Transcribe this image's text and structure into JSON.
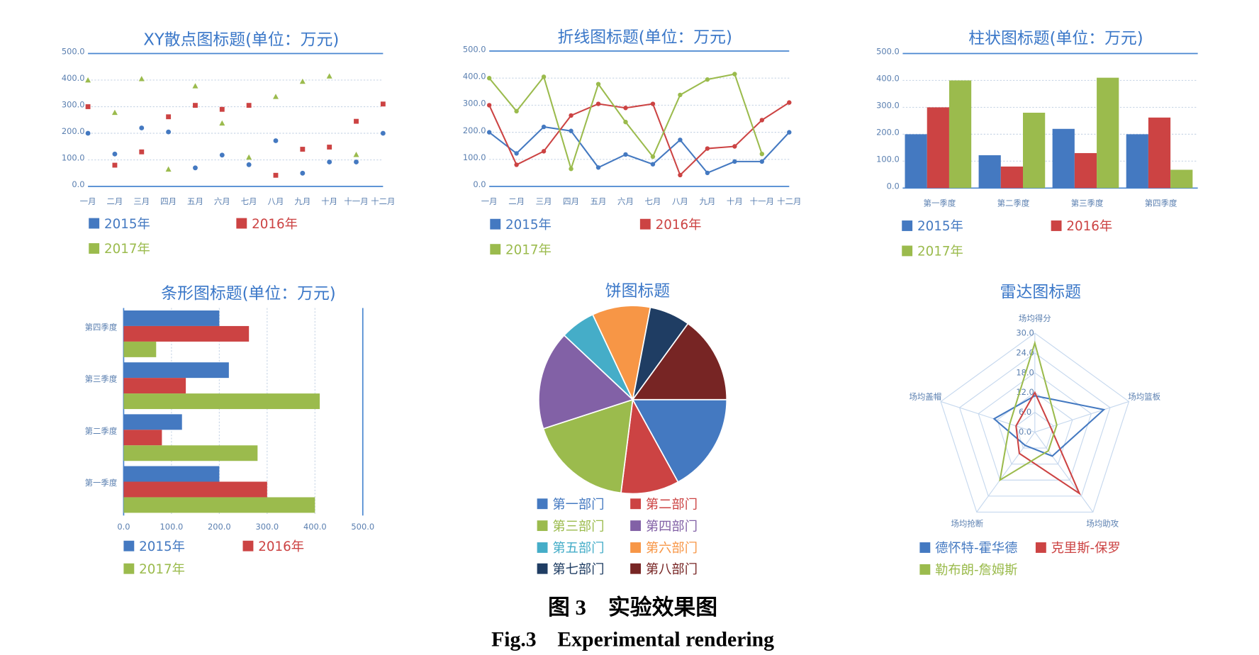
{
  "chart_data": [
    {
      "type": "scatter",
      "title": "XY散点图标题(单位：万元)",
      "categories": [
        "一月",
        "二月",
        "三月",
        "四月",
        "五月",
        "六月",
        "七月",
        "八月",
        "九月",
        "十月",
        "十一月",
        "十二月"
      ],
      "series": [
        {
          "name": "2015年",
          "color": "#4479c1",
          "marker": "circle",
          "values": [
            200,
            122,
            220,
            205,
            70,
            118,
            82,
            172,
            50,
            92,
            92,
            200
          ]
        },
        {
          "name": "2016年",
          "color": "#cc4343",
          "marker": "square",
          "values": [
            300,
            80,
            130,
            262,
            305,
            290,
            305,
            42,
            140,
            148,
            245,
            310
          ]
        },
        {
          "name": "2017年",
          "color": "#9bbb4d",
          "marker": "triangle",
          "values": [
            400,
            278,
            405,
            65,
            378,
            238,
            110,
            338,
            395,
            415,
            120,
            null
          ]
        }
      ],
      "ylim": [
        0,
        500
      ],
      "yticks": [
        {
          "value": 0,
          "label": "0.0"
        },
        {
          "value": 100,
          "label": "100.0"
        },
        {
          "value": 200,
          "label": "200.0"
        },
        {
          "value": 300,
          "label": "300.0"
        },
        {
          "value": 400,
          "label": "400.0"
        },
        {
          "value": 500,
          "label": "500.0"
        }
      ],
      "grid": true
    },
    {
      "type": "line",
      "title": "折线图标题(单位：万元)",
      "categories": [
        "一月",
        "二月",
        "三月",
        "四月",
        "五月",
        "六月",
        "七月",
        "八月",
        "九月",
        "十月",
        "十一月",
        "十二月"
      ],
      "series": [
        {
          "name": "2015年",
          "color": "#4479c1",
          "values": [
            200,
            122,
            220,
            205,
            70,
            118,
            82,
            172,
            50,
            92,
            92,
            200
          ]
        },
        {
          "name": "2016年",
          "color": "#cc4343",
          "values": [
            300,
            80,
            130,
            262,
            305,
            290,
            305,
            42,
            140,
            148,
            245,
            310
          ]
        },
        {
          "name": "2017年",
          "color": "#9bbb4d",
          "values": [
            400,
            278,
            405,
            65,
            378,
            238,
            110,
            338,
            395,
            415,
            120,
            null
          ]
        }
      ],
      "ylim": [
        0,
        500
      ],
      "yticks": [
        {
          "value": 0,
          "label": "0.0"
        },
        {
          "value": 100,
          "label": "100.0"
        },
        {
          "value": 200,
          "label": "200.0"
        },
        {
          "value": 300,
          "label": "300.0"
        },
        {
          "value": 400,
          "label": "400.0"
        },
        {
          "value": 500,
          "label": "500.0"
        }
      ],
      "grid": true
    },
    {
      "type": "bar",
      "title": "柱状图标题(单位：万元)",
      "categories": [
        "第一季度",
        "第二季度",
        "第三季度",
        "第四季度"
      ],
      "series": [
        {
          "name": "2015年",
          "color": "#4479c1",
          "values": [
            200,
            122,
            220,
            200
          ]
        },
        {
          "name": "2016年",
          "color": "#cc4343",
          "values": [
            300,
            80,
            130,
            262
          ]
        },
        {
          "name": "2017年",
          "color": "#9bbb4d",
          "values": [
            400,
            280,
            410,
            68
          ]
        }
      ],
      "ylim": [
        0,
        500
      ],
      "yticks": [
        {
          "value": 0,
          "label": "0.0"
        },
        {
          "value": 100,
          "label": "100.0"
        },
        {
          "value": 200,
          "label": "200.0"
        },
        {
          "value": 300,
          "label": "300.0"
        },
        {
          "value": 400,
          "label": "400.0"
        },
        {
          "value": 500,
          "label": "500.0"
        }
      ],
      "grid": true
    },
    {
      "type": "barh",
      "title": "条形图标题(单位：万元)",
      "categories": [
        "第一季度",
        "第二季度",
        "第三季度",
        "第四季度"
      ],
      "series": [
        {
          "name": "2015年",
          "color": "#4479c1",
          "values": [
            200,
            122,
            220,
            200
          ]
        },
        {
          "name": "2016年",
          "color": "#cc4343",
          "values": [
            300,
            80,
            130,
            262
          ]
        },
        {
          "name": "2017年",
          "color": "#9bbb4d",
          "values": [
            400,
            280,
            410,
            68
          ]
        }
      ],
      "xlim": [
        0,
        500
      ],
      "xticks": [
        {
          "value": 0,
          "label": "0.0"
        },
        {
          "value": 100,
          "label": "100.0"
        },
        {
          "value": 200,
          "label": "200.0"
        },
        {
          "value": 300,
          "label": "300.0"
        },
        {
          "value": 400,
          "label": "400.0"
        },
        {
          "value": 500,
          "label": "500.0"
        }
      ],
      "grid": true
    },
    {
      "type": "pie",
      "title": "饼图标题",
      "categories": [
        "第一部门",
        "第二部门",
        "第三部门",
        "第四部门",
        "第五部门",
        "第六部门",
        "第七部门",
        "第八部门"
      ],
      "values": [
        17,
        10,
        18,
        17,
        6,
        10,
        7,
        15
      ],
      "colors": [
        "#4479c1",
        "#cc4343",
        "#9bbb4d",
        "#8261a6",
        "#45adc8",
        "#f79646",
        "#1f3d63",
        "#772524"
      ]
    },
    {
      "type": "radar",
      "title": "雷达图标题",
      "categories": [
        "场均得分",
        "场均篮板",
        "场均助攻",
        "场均抢断",
        "场均盖帽"
      ],
      "series": [
        {
          "name": "德怀特-霍华德",
          "color": "#4479c1",
          "values": [
            11,
            22,
            9,
            5,
            13
          ]
        },
        {
          "name": "克里斯-保罗",
          "color": "#cc4343",
          "values": [
            12,
            5,
            23,
            8,
            6
          ]
        },
        {
          "name": "勒布朗-詹姆斯",
          "color": "#9bbb4d",
          "values": [
            27,
            7,
            7,
            18,
            8
          ]
        }
      ],
      "rlim": [
        0,
        30
      ],
      "rticks": [
        {
          "value": 0,
          "label": "0.0"
        },
        {
          "value": 6,
          "label": "6.0"
        },
        {
          "value": 12,
          "label": "12.0"
        },
        {
          "value": 18,
          "label": "18.0"
        },
        {
          "value": 24,
          "label": "24.0"
        },
        {
          "value": 30,
          "label": "30.0"
        }
      ]
    }
  ],
  "caption": {
    "cn": "图 3　实验效果图",
    "en": "Fig.3　Experimental rendering"
  }
}
